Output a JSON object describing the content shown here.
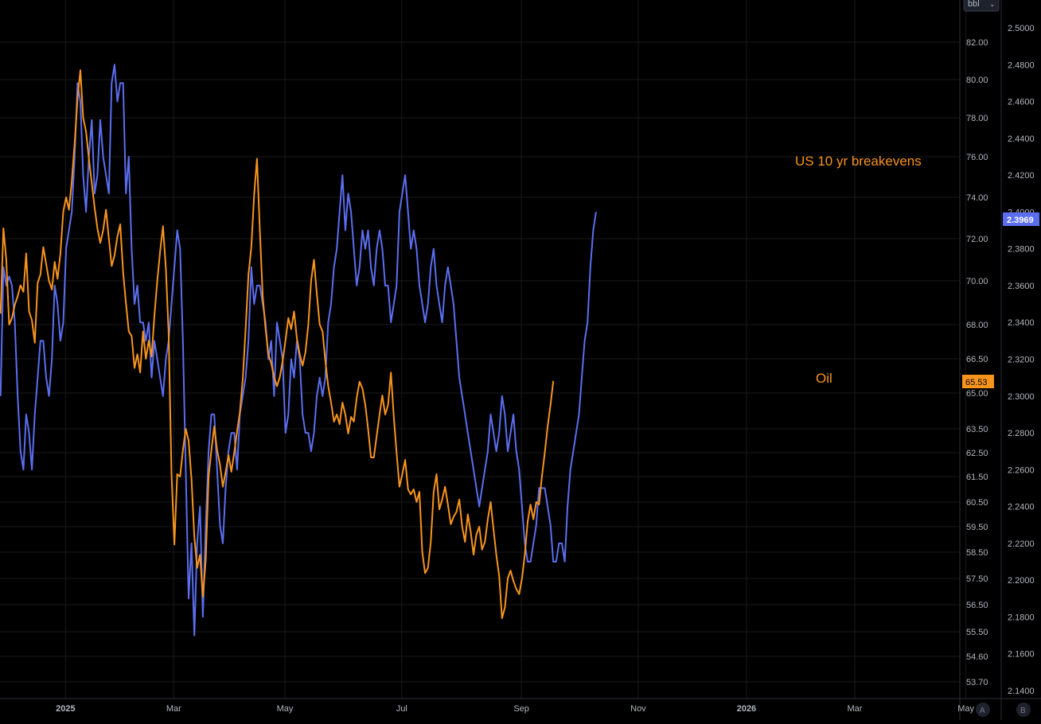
{
  "colors": {
    "background": "#000000",
    "grid": "#1a1a1a",
    "axis_text": "#b2b5be",
    "breakeven": "#5b6ef0",
    "oil": "#f7941d",
    "divider": "#2a2e39"
  },
  "unit_button": "bbl",
  "scale_buttons": [
    "A",
    "B"
  ],
  "annotations": {
    "breakeven_label": "US 10 yr breakevens",
    "oil_label": "Oil"
  },
  "chart_data": {
    "type": "line",
    "x_labels": [
      {
        "label": "",
        "i": -2
      },
      {
        "label": "2025",
        "i": 23
      },
      {
        "label": "Mar",
        "i": 61
      },
      {
        "label": "May",
        "i": 100
      },
      {
        "label": "Jul",
        "i": 141
      },
      {
        "label": "Sep",
        "i": 183
      },
      {
        "label": "Nov",
        "i": 224
      },
      {
        "label": "2026",
        "i": 262
      },
      {
        "label": "Mar",
        "i": 300
      },
      {
        "label": "May",
        "i": 339
      }
    ],
    "oil_axis": {
      "ticks": [
        "82.00",
        "80.00",
        "78.00",
        "76.00",
        "74.00",
        "72.00",
        "70.00",
        "68.00",
        "66.50",
        "65.00",
        "63.50",
        "62.50",
        "61.50",
        "60.50",
        "59.50",
        "58.50",
        "57.50",
        "56.50",
        "55.50",
        "54.60",
        "53.70"
      ],
      "scale": "log",
      "last_value": "65.53"
    },
    "breakeven_axis": {
      "ticks": [
        "2.5000",
        "2.4800",
        "2.4600",
        "2.4400",
        "2.4200",
        "2.4000",
        "2.3800",
        "2.3600",
        "2.3400",
        "2.3200",
        "2.3000",
        "2.2800",
        "2.2600",
        "2.2400",
        "2.2200",
        "2.2000",
        "2.1800",
        "2.1600",
        "2.1400"
      ],
      "ylim": [
        2.135,
        2.52
      ],
      "last_value": "2.3969"
    },
    "grid": true,
    "series": [
      {
        "name": "US 10 yr breakevens",
        "axis": "right",
        "values": [
          2.3,
          2.37,
          2.36,
          2.365,
          2.36,
          2.34,
          2.3,
          2.27,
          2.26,
          2.29,
          2.28,
          2.26,
          2.29,
          2.31,
          2.33,
          2.33,
          2.31,
          2.3,
          2.32,
          2.36,
          2.35,
          2.33,
          2.34,
          2.38,
          2.39,
          2.4,
          2.43,
          2.47,
          2.46,
          2.42,
          2.4,
          2.43,
          2.45,
          2.41,
          2.42,
          2.45,
          2.43,
          2.42,
          2.41,
          2.47,
          2.48,
          2.46,
          2.47,
          2.47,
          2.41,
          2.43,
          2.38,
          2.35,
          2.36,
          2.34,
          2.34,
          2.33,
          2.34,
          2.31,
          2.33,
          2.32,
          2.31,
          2.3,
          2.32,
          2.33,
          2.35,
          2.37,
          2.39,
          2.38,
          2.33,
          2.26,
          2.19,
          2.22,
          2.17,
          2.22,
          2.24,
          2.18,
          2.23,
          2.27,
          2.29,
          2.29,
          2.26,
          2.23,
          2.22,
          2.25,
          2.27,
          2.28,
          2.28,
          2.26,
          2.29,
          2.3,
          2.31,
          2.33,
          2.37,
          2.35,
          2.36,
          2.36,
          2.35,
          2.34,
          2.32,
          2.33,
          2.3,
          2.34,
          2.33,
          2.32,
          2.28,
          2.29,
          2.32,
          2.31,
          2.33,
          2.32,
          2.29,
          2.28,
          2.28,
          2.27,
          2.28,
          2.3,
          2.31,
          2.3,
          2.31,
          2.34,
          2.35,
          2.37,
          2.38,
          2.4,
          2.42,
          2.39,
          2.41,
          2.4,
          2.38,
          2.36,
          2.37,
          2.39,
          2.38,
          2.39,
          2.37,
          2.36,
          2.38,
          2.39,
          2.38,
          2.36,
          2.36,
          2.34,
          2.35,
          2.36,
          2.4,
          2.41,
          2.42,
          2.4,
          2.38,
          2.39,
          2.38,
          2.36,
          2.35,
          2.34,
          2.35,
          2.37,
          2.38,
          2.36,
          2.35,
          2.34,
          2.36,
          2.37,
          2.36,
          2.35,
          2.33,
          2.31,
          2.3,
          2.29,
          2.28,
          2.27,
          2.26,
          2.25,
          2.24,
          2.25,
          2.26,
          2.27,
          2.29,
          2.28,
          2.27,
          2.28,
          2.3,
          2.29,
          2.27,
          2.28,
          2.29,
          2.27,
          2.26,
          2.24,
          2.22,
          2.21,
          2.21,
          2.22,
          2.23,
          2.25,
          2.25,
          2.25,
          2.24,
          2.23,
          2.21,
          2.21,
          2.22,
          2.22,
          2.21,
          2.24,
          2.26,
          2.27,
          2.28,
          2.29,
          2.31,
          2.33,
          2.34,
          2.37,
          2.39,
          2.4
        ],
        "note_end": 2.3969
      },
      {
        "name": "Oil",
        "axis": "left",
        "values": [
          68.5,
          72.5,
          71.0,
          68.0,
          68.3,
          68.9,
          69.3,
          69.8,
          69.5,
          71.3,
          68.6,
          68.2,
          67.2,
          69.9,
          70.3,
          71.6,
          70.8,
          70.0,
          69.6,
          70.9,
          70.1,
          71.3,
          73.3,
          74.0,
          73.4,
          74.8,
          76.7,
          79.0,
          80.5,
          78.0,
          77.3,
          75.9,
          74.7,
          73.5,
          72.5,
          71.8,
          72.4,
          73.4,
          72.0,
          70.7,
          71.2,
          72.1,
          72.7,
          70.4,
          69.0,
          67.7,
          67.5,
          66.1,
          66.7,
          65.9,
          67.7,
          66.5,
          67.3,
          66.6,
          68.4,
          70.0,
          71.4,
          72.6,
          70.6,
          67.6,
          61.6,
          58.8,
          61.6,
          61.5,
          62.6,
          63.5,
          63.0,
          61.4,
          59.1,
          57.9,
          58.4,
          56.8,
          58.2,
          61.5,
          62.6,
          63.6,
          62.6,
          62.0,
          61.1,
          61.7,
          62.4,
          61.7,
          62.5,
          63.4,
          64.2,
          65.6,
          67.8,
          70.3,
          71.6,
          74.1,
          75.9,
          72.4,
          69.3,
          67.8,
          66.7,
          66.3,
          65.7,
          65.3,
          65.7,
          66.4,
          67.3,
          68.3,
          67.8,
          68.6,
          67.4,
          66.7,
          66.2,
          66.8,
          68.0,
          70.0,
          71.0,
          69.4,
          68.0,
          67.7,
          66.4,
          65.3,
          64.6,
          63.8,
          64.1,
          63.7,
          64.6,
          64.1,
          63.3,
          64.0,
          63.8,
          64.8,
          65.5,
          65.2,
          64.5,
          63.5,
          62.3,
          62.3,
          63.2,
          64.1,
          64.9,
          64.1,
          64.5,
          65.9,
          64.0,
          62.5,
          61.1,
          61.6,
          62.2,
          61.0,
          60.8,
          61.0,
          60.5,
          60.9,
          58.5,
          57.7,
          57.9,
          58.9,
          60.9,
          61.6,
          60.2,
          60.6,
          61.1,
          60.4,
          59.6,
          59.9,
          60.1,
          60.6,
          59.5,
          58.9,
          60.0,
          59.3,
          58.4,
          59.2,
          59.5,
          58.6,
          58.9,
          59.8,
          60.5,
          59.4,
          58.4,
          57.6,
          56.0,
          56.4,
          57.5,
          57.8,
          57.4,
          57.1,
          56.9,
          57.5,
          58.4,
          59.7,
          60.4,
          59.8,
          60.5,
          60.4,
          61.5,
          62.5,
          63.6,
          64.5,
          65.53
        ]
      }
    ]
  }
}
